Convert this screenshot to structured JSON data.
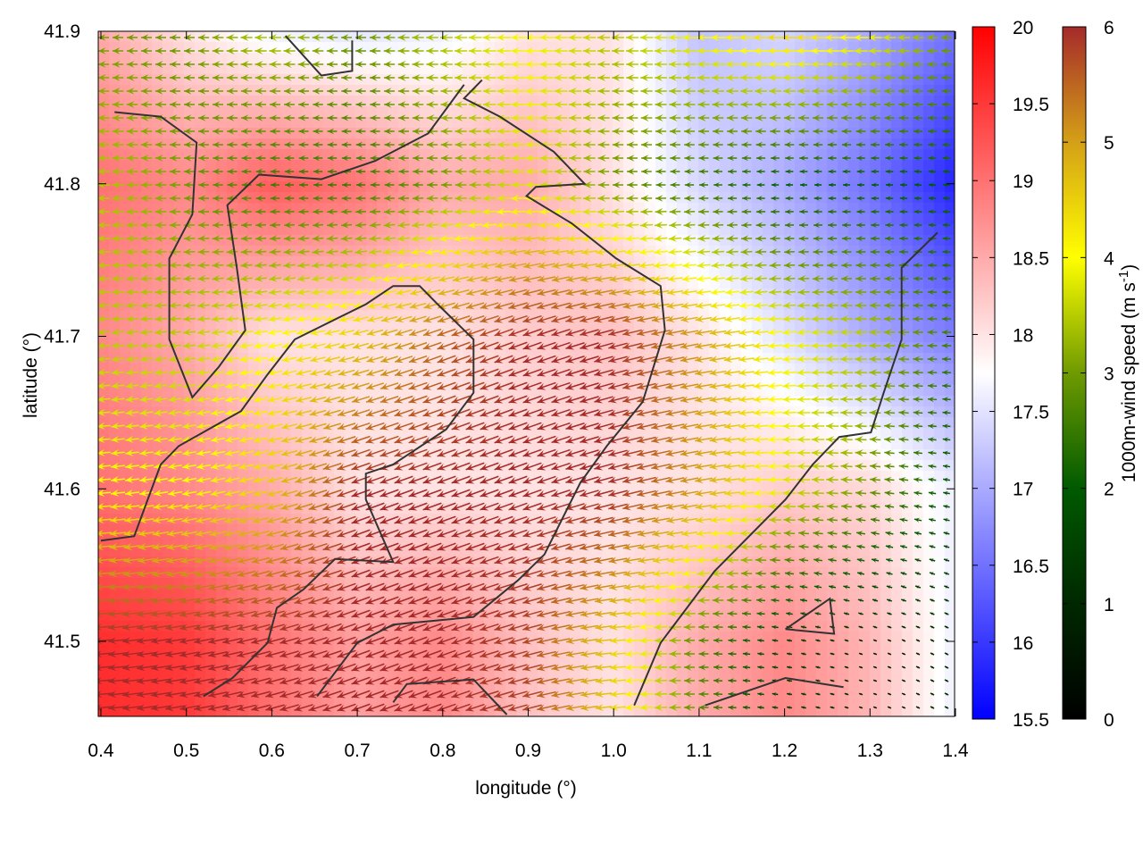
{
  "chart_data": {
    "type": "heatmap",
    "subtype": "heatmap with colored wind vector field and contour lines",
    "title": "",
    "xlabel": "longitude (°)",
    "ylabel": "latitude (°)",
    "xlim": [
      0.4,
      1.4
    ],
    "ylim": [
      41.451,
      41.9
    ],
    "xticks": [
      "0.4",
      "0.5",
      "0.6",
      "0.7",
      "0.8",
      "0.9",
      "1.0",
      "1.1",
      "1.2",
      "1.3",
      "1.4"
    ],
    "yticks": [
      "41.5",
      "41.6",
      "41.7",
      "41.8",
      "41.9"
    ],
    "grid": false,
    "heatmap": {
      "colorbar_label": "",
      "range": [
        15.5,
        20
      ],
      "colorbar_ticks": [
        "15.5",
        "16",
        "16.5",
        "17",
        "17.5",
        "18",
        "18.5",
        "19",
        "19.5",
        "20"
      ],
      "palette": {
        "low": "#0000ff",
        "mid": "#ffffff",
        "high": "#ff0000"
      },
      "grid_lon": [
        0.4,
        0.5,
        0.6,
        0.7,
        0.8,
        0.9,
        1.0,
        1.1,
        1.2,
        1.3,
        1.4
      ],
      "grid_lat": [
        41.9,
        41.8,
        41.7,
        41.6,
        41.5
      ],
      "values_approx": [
        [
          18.5,
          18.0,
          17.6,
          17.5,
          17.6,
          18.0,
          18.0,
          17.2,
          17.4,
          17.0,
          16.5
        ],
        [
          19.0,
          18.8,
          19.2,
          19.0,
          18.5,
          18.5,
          18.0,
          17.4,
          17.0,
          16.5,
          15.8
        ],
        [
          18.8,
          18.5,
          18.0,
          18.0,
          18.0,
          18.2,
          18.3,
          18.0,
          17.5,
          17.0,
          16.6
        ],
        [
          19.0,
          18.8,
          18.5,
          18.0,
          18.0,
          18.0,
          18.0,
          18.0,
          18.2,
          18.1,
          17.6
        ],
        [
          19.6,
          19.5,
          19.0,
          18.6,
          18.8,
          18.3,
          18.0,
          18.5,
          18.8,
          18.4,
          17.6
        ]
      ]
    },
    "wind": {
      "colorbar_label": "1000m-wind speed (m s",
      "colorbar_label_sup": "-1",
      "colorbar_label_end": ")",
      "range": [
        0,
        6
      ],
      "colorbar_ticks": [
        "0",
        "1",
        "2",
        "3",
        "4",
        "5",
        "6"
      ],
      "palette_stops": [
        "#000000",
        "#002800",
        "#005a00",
        "#6f9a00",
        "#ffff00",
        "#d4a017",
        "#a52a2a"
      ],
      "grid_lon": [
        0.4,
        0.5,
        0.6,
        0.7,
        0.8,
        0.9,
        1.0,
        1.1,
        1.2,
        1.3,
        1.4
      ],
      "grid_lat": [
        41.9,
        41.8,
        41.7,
        41.6,
        41.5
      ],
      "speed_approx": [
        [
          3.0,
          3.0,
          3.5,
          3.0,
          3.5,
          4.0,
          3.5,
          4.0,
          4.5,
          4.0,
          3.0
        ],
        [
          3.5,
          3.0,
          2.5,
          2.5,
          3.0,
          3.8,
          3.0,
          2.5,
          2.0,
          2.0,
          2.0
        ],
        [
          3.5,
          3.5,
          4.0,
          4.5,
          5.5,
          6.0,
          6.0,
          5.0,
          4.0,
          3.5,
          2.5
        ],
        [
          4.0,
          4.0,
          4.5,
          6.0,
          6.0,
          6.0,
          6.0,
          5.0,
          3.8,
          3.0,
          1.8
        ],
        [
          6.0,
          6.0,
          6.0,
          6.0,
          6.0,
          5.8,
          4.5,
          2.8,
          1.5,
          1.0,
          1.2
        ]
      ],
      "heading_deg_approx": [
        [
          180,
          180,
          180,
          180,
          180,
          180,
          180,
          180,
          180,
          180,
          180
        ],
        [
          180,
          180,
          180,
          180,
          180,
          180,
          180,
          180,
          180,
          180,
          175
        ],
        [
          185,
          185,
          190,
          195,
          200,
          200,
          195,
          190,
          185,
          180,
          180
        ],
        [
          185,
          190,
          195,
          200,
          200,
          200,
          195,
          190,
          180,
          175,
          170
        ],
        [
          185,
          190,
          195,
          200,
          200,
          195,
          185,
          180,
          170,
          160,
          150
        ]
      ]
    },
    "contours": [
      [
        [
          0.52,
          41.464
        ],
        [
          0.554,
          41.476
        ],
        [
          0.595,
          41.499
        ],
        [
          0.606,
          41.522
        ],
        [
          0.637,
          41.534
        ],
        [
          0.674,
          41.554
        ],
        [
          0.742,
          41.552
        ],
        [
          0.71,
          41.593
        ],
        [
          0.71,
          41.61
        ],
        [
          0.742,
          41.616
        ],
        [
          0.804,
          41.639
        ],
        [
          0.836,
          41.663
        ],
        [
          0.836,
          41.698
        ],
        [
          0.794,
          41.721
        ],
        [
          0.773,
          41.733
        ],
        [
          0.742,
          41.733
        ],
        [
          0.71,
          41.721
        ],
        [
          0.627,
          41.698
        ],
        [
          0.595,
          41.675
        ],
        [
          0.564,
          41.651
        ],
        [
          0.491,
          41.628
        ],
        [
          0.47,
          41.616
        ],
        [
          0.439,
          41.569
        ],
        [
          0.4,
          41.566
        ]
      ],
      [
        [
          0.653,
          41.464
        ],
        [
          0.7,
          41.499
        ],
        [
          0.742,
          41.511
        ],
        [
          0.836,
          41.516
        ],
        [
          0.888,
          41.54
        ],
        [
          0.919,
          41.557
        ],
        [
          0.961,
          41.604
        ],
        [
          0.992,
          41.628
        ],
        [
          1.034,
          41.657
        ],
        [
          1.06,
          41.704
        ],
        [
          1.055,
          41.733
        ],
        [
          1.003,
          41.751
        ],
        [
          0.951,
          41.774
        ],
        [
          0.898,
          41.792
        ],
        [
          0.909,
          41.798
        ],
        [
          0.966,
          41.8
        ],
        [
          0.93,
          41.821
        ],
        [
          0.867,
          41.844
        ],
        [
          0.825,
          41.856
        ],
        [
          0.846,
          41.868
        ]
      ],
      [
        [
          1.024,
          41.458
        ],
        [
          1.055,
          41.499
        ],
        [
          1.118,
          41.546
        ],
        [
          1.201,
          41.593
        ],
        [
          1.233,
          41.616
        ],
        [
          1.264,
          41.634
        ],
        [
          1.301,
          41.637
        ],
        [
          1.316,
          41.663
        ],
        [
          1.337,
          41.698
        ],
        [
          1.337,
          41.745
        ],
        [
          1.379,
          41.768
        ]
      ],
      [
        [
          0.416,
          41.847
        ],
        [
          0.47,
          41.844
        ],
        [
          0.512,
          41.827
        ],
        [
          0.507,
          41.78
        ],
        [
          0.48,
          41.751
        ],
        [
          0.48,
          41.698
        ],
        [
          0.507,
          41.66
        ],
        [
          0.538,
          41.68
        ],
        [
          0.569,
          41.704
        ],
        [
          0.559,
          41.745
        ],
        [
          0.548,
          41.786
        ],
        [
          0.585,
          41.806
        ],
        [
          0.658,
          41.803
        ],
        [
          0.721,
          41.815
        ],
        [
          0.783,
          41.833
        ],
        [
          0.825,
          41.865
        ]
      ],
      [
        [
          1.107,
          41.458
        ],
        [
          1.201,
          41.476
        ],
        [
          1.269,
          41.47
        ]
      ],
      [
        [
          1.201,
          41.508
        ],
        [
          1.253,
          41.528
        ],
        [
          1.258,
          41.505
        ],
        [
          1.201,
          41.508
        ]
      ],
      [
        [
          0.616,
          41.897
        ],
        [
          0.658,
          41.871
        ],
        [
          0.694,
          41.874
        ],
        [
          0.694,
          41.894
        ]
      ],
      [
        [
          0.742,
          41.46
        ],
        [
          0.758,
          41.472
        ],
        [
          0.836,
          41.475
        ],
        [
          0.875,
          41.452
        ]
      ]
    ]
  }
}
